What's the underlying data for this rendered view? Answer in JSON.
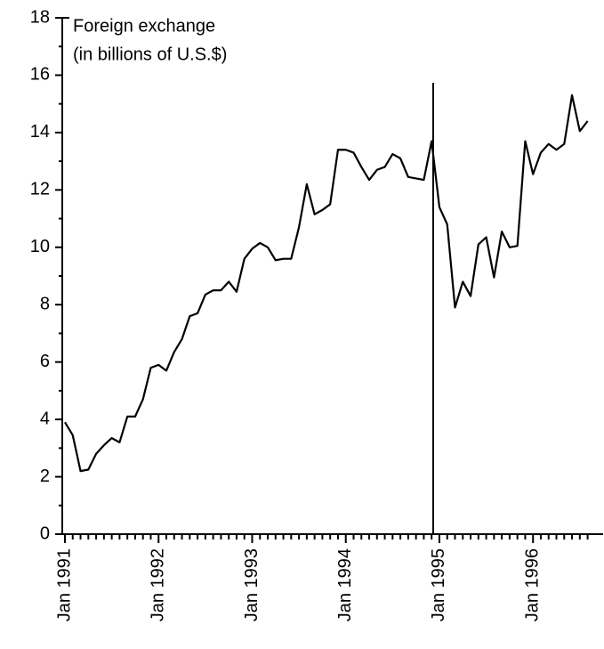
{
  "chart_data": {
    "type": "line",
    "title": "Foreign exchange",
    "subtitle": "(in billions of U.S.$)",
    "categories": [
      "Jan 1991",
      null,
      null,
      null,
      null,
      null,
      null,
      null,
      null,
      null,
      null,
      null,
      "Jan 1992",
      null,
      null,
      null,
      null,
      null,
      null,
      null,
      null,
      null,
      null,
      null,
      "Jan 1993",
      null,
      null,
      null,
      null,
      null,
      null,
      null,
      null,
      null,
      null,
      null,
      "Jan 1994",
      null,
      null,
      null,
      null,
      null,
      null,
      null,
      null,
      null,
      null,
      null,
      "Jan 1995",
      null,
      null,
      null,
      null,
      null,
      null,
      null,
      null,
      null,
      null,
      null,
      "Jan 1996",
      null,
      null,
      null,
      null,
      null,
      null,
      null
    ],
    "values": [
      3.9,
      3.45,
      2.2,
      2.25,
      2.8,
      3.1,
      3.35,
      3.2,
      4.1,
      4.1,
      4.7,
      5.8,
      5.9,
      5.7,
      6.35,
      6.8,
      7.6,
      7.7,
      8.35,
      8.5,
      8.5,
      8.8,
      8.45,
      9.6,
      9.95,
      10.15,
      10.0,
      9.55,
      9.6,
      9.6,
      10.7,
      12.2,
      11.15,
      11.3,
      11.5,
      13.4,
      13.4,
      13.3,
      12.8,
      12.35,
      12.7,
      12.8,
      13.25,
      13.1,
      12.45,
      12.4,
      12.35,
      13.7,
      11.4,
      10.8,
      7.9,
      8.8,
      8.3,
      10.1,
      10.35,
      8.95,
      10.55,
      10.0,
      10.05,
      13.7,
      12.55,
      13.3,
      13.6,
      13.4,
      13.6,
      15.3,
      14.05,
      14.4
    ],
    "color": "#000000",
    "ylim": [
      0,
      18
    ],
    "yticks": [
      0,
      2,
      4,
      6,
      8,
      10,
      12,
      14,
      16,
      18
    ]
  }
}
